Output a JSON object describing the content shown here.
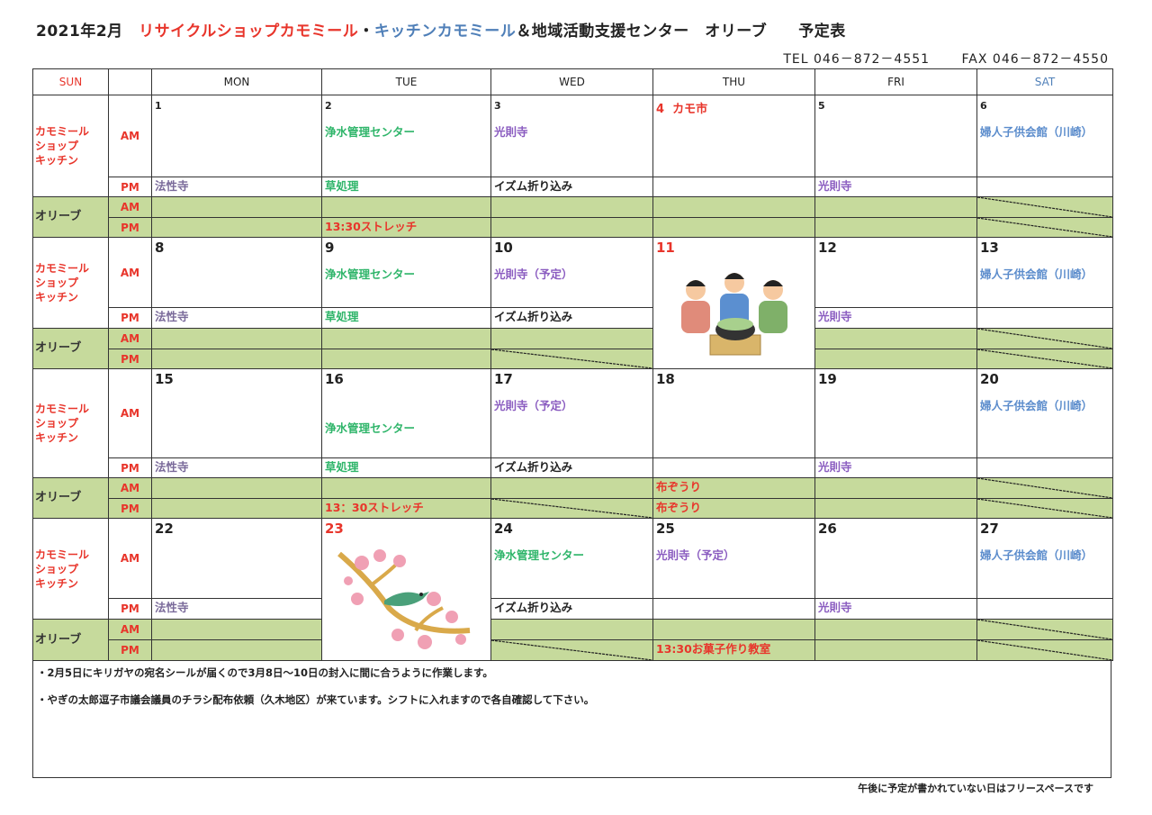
{
  "header": {
    "title_parts": [
      {
        "text": "2021年2月　",
        "color": "#222222"
      },
      {
        "text": "リサイクルショップカモミール",
        "color": "#e8352b"
      },
      {
        "text": "・",
        "color": "#222222"
      },
      {
        "text": "キッチンカモミール",
        "color": "#4f7fb8"
      },
      {
        "text": "＆地域活動支援センター　オリーブ　　予定表",
        "color": "#222222"
      }
    ],
    "tel": "TEL  046－872－4551",
    "fax": "FAX  046－872－4550"
  },
  "colors": {
    "red": "#e8352b",
    "green": "#2fb56a",
    "purple": "#8a5cc0",
    "grayp": "#7a6a9a",
    "blue": "#5b8ccc",
    "black": "#222222",
    "olive_bg": "#c6da9c"
  },
  "columns": [
    {
      "label": "SUN",
      "color": "#e8352b"
    },
    {
      "label": "",
      "color": "#222"
    },
    {
      "label": "MON",
      "color": "#222"
    },
    {
      "label": "TUE",
      "color": "#222"
    },
    {
      "label": "WED",
      "color": "#222"
    },
    {
      "label": "THU",
      "color": "#222"
    },
    {
      "label": "FRI",
      "color": "#222"
    },
    {
      "label": "SAT",
      "color": "#4f7fb8"
    }
  ],
  "groups": {
    "shop": "カモミール\nショップ\nキッチン",
    "olive": "オリーブ",
    "am": "AM",
    "pm": "PM"
  },
  "weeks": [
    {
      "days": [
        {
          "date": "1",
          "pm": {
            "text": "法性寺",
            "color": "grayp"
          }
        },
        {
          "date": "2",
          "am": {
            "text": "浄水管理センター",
            "color": "green"
          },
          "pm": {
            "text": "草処理",
            "color": "green"
          },
          "olive_pm": {
            "text": "13:30ストレッチ",
            "color": "red"
          }
        },
        {
          "date": "3",
          "am": {
            "text": "光則寺",
            "color": "purple"
          },
          "pm": {
            "text": "イズム折り込み",
            "color": "black"
          }
        },
        {
          "date": "4",
          "date_color": "red",
          "date_suffix": "  カモ市"
        },
        {
          "date": "5",
          "pm": {
            "text": "光則寺",
            "color": "purple"
          }
        },
        {
          "date": "6",
          "am": {
            "text": "婦人子供会館（川崎）",
            "color": "blue"
          },
          "olive_am_closed": true,
          "olive_pm_closed": true
        }
      ]
    },
    {
      "days": [
        {
          "date": "8",
          "pm": {
            "text": "法性寺",
            "color": "grayp"
          }
        },
        {
          "date": "9",
          "am": {
            "text": "浄水管理センター",
            "color": "green"
          },
          "pm": {
            "text": "草処理",
            "color": "green"
          }
        },
        {
          "date": "10",
          "am": {
            "text": "光則寺（予定）",
            "color": "purple"
          },
          "pm": {
            "text": "イズム折り込み",
            "color": "black"
          },
          "olive_pm_closed": true
        },
        {
          "date": "11",
          "date_color": "red",
          "illustration": "nabe-party-illustration"
        },
        {
          "date": "12",
          "pm": {
            "text": "光則寺",
            "color": "purple"
          }
        },
        {
          "date": "13",
          "am": {
            "text": "婦人子供会館（川崎）",
            "color": "blue"
          },
          "olive_am_closed": true,
          "olive_pm_closed": true
        }
      ]
    },
    {
      "days": [
        {
          "date": "15",
          "pm": {
            "text": "法性寺",
            "color": "grayp"
          }
        },
        {
          "date": "16",
          "am": {
            "text": "浄水管理センター",
            "color": "green"
          },
          "am_low": true,
          "pm": {
            "text": "草処理",
            "color": "green"
          },
          "olive_pm": {
            "text": "13：30ストレッチ",
            "color": "red"
          }
        },
        {
          "date": "17",
          "am": {
            "text": "光則寺（予定）",
            "color": "purple"
          },
          "pm": {
            "text": "イズム折り込み",
            "color": "black"
          },
          "olive_pm_closed": true
        },
        {
          "date": "18",
          "olive_am": {
            "text": "布ぞうり",
            "color": "red"
          },
          "olive_pm": {
            "text": "布ぞうり",
            "color": "red"
          }
        },
        {
          "date": "19",
          "pm": {
            "text": "光則寺",
            "color": "purple"
          }
        },
        {
          "date": "20",
          "am": {
            "text": "婦人子供会館（川崎）",
            "color": "blue"
          },
          "olive_am_closed": true,
          "olive_pm_closed": true
        }
      ]
    },
    {
      "days": [
        {
          "date": "22",
          "pm": {
            "text": "法性寺",
            "color": "grayp"
          }
        },
        {
          "date": "23",
          "date_color": "red",
          "illustration": "plum-blossom-bird-illustration"
        },
        {
          "date": "24",
          "am": {
            "text": "浄水管理センター",
            "color": "green"
          },
          "pm": {
            "text": "イズム折り込み",
            "color": "black"
          },
          "olive_pm_closed": true
        },
        {
          "date": "25",
          "am": {
            "text": "光則寺（予定）",
            "color": "purple"
          },
          "olive_pm": {
            "text": "13:30お菓子作り教室",
            "color": "red"
          }
        },
        {
          "date": "26",
          "pm": {
            "text": "光則寺",
            "color": "purple"
          }
        },
        {
          "date": "27",
          "am": {
            "text": "婦人子供会館（川崎）",
            "color": "blue"
          },
          "olive_am_closed": true,
          "olive_pm_closed": true
        }
      ]
    }
  ],
  "notes": [
    "・2月5日にキリガヤの宛名シールが届くので3月8日～10日の封入に間に合うように作業します。",
    "・やぎの太郎逗子市議会議員のチラシ配布依頼（久木地区）が来ています。シフトに入れますので各自確認して下さい。"
  ],
  "footer": "午後に予定が書かれていない日はフリースペースです"
}
